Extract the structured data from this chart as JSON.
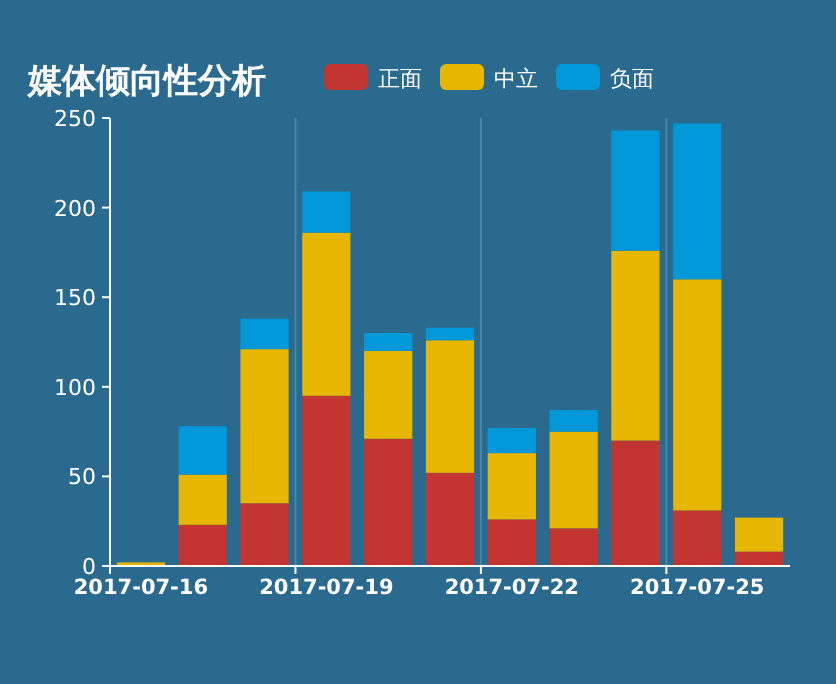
{
  "chart_data": {
    "type": "bar",
    "title": "媒体倾向性分析",
    "stacked": true,
    "legend": "top",
    "grid": "x",
    "categories": [
      "2017-07-16",
      null,
      null,
      "2017-07-19",
      null,
      null,
      "2017-07-22",
      null,
      null,
      "2017-07-25",
      null
    ],
    "ylim": [
      0,
      250
    ],
    "yticks": [
      0,
      50,
      100,
      150,
      200,
      250
    ],
    "series": [
      {
        "name": "正面",
        "color": "#c23531",
        "values": [
          0,
          23,
          35,
          95,
          71,
          52,
          26,
          21,
          70,
          31,
          8
        ]
      },
      {
        "name": "中立",
        "color": "#e6b600",
        "values": [
          2,
          28,
          86,
          91,
          49,
          74,
          37,
          54,
          106,
          129,
          19
        ]
      },
      {
        "name": "负面",
        "color": "#0098d9",
        "values": [
          0,
          27,
          17,
          23,
          10,
          7,
          14,
          12,
          67,
          87,
          0
        ]
      }
    ]
  }
}
